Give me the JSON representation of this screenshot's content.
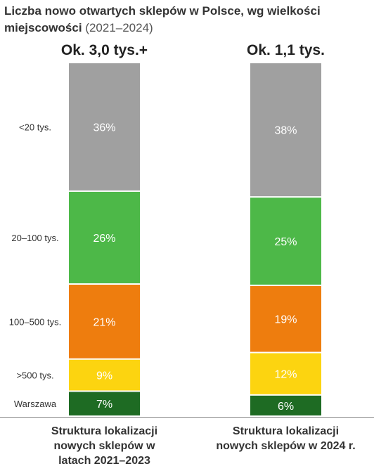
{
  "chart_data": {
    "type": "bar",
    "stacked": true,
    "percent": true,
    "title_bold": "Liczba nowo otwartych sklepów w Polsce, wg wielkości miejscowości",
    "title_normal": "(2021–2024)",
    "categories": [
      "Struktura lokalizacji nowych sklepów w latach 2021–2023",
      "Struktura lokalizacji nowych sklepów w 2024 r."
    ],
    "category_lines": [
      [
        "Struktura lokalizacji",
        "nowych sklepów w",
        "latach 2021–2023"
      ],
      [
        "Struktura lokalizacji",
        "nowych sklepów w 2024 r."
      ]
    ],
    "totals": [
      "Ok. 3,0 tys.+",
      "Ok. 1,1 tys."
    ],
    "series": [
      {
        "name": "Warszawa",
        "values": [
          7,
          6
        ],
        "labels": [
          "7%",
          "6%"
        ],
        "color": "#1e6b23",
        "label_color": "#ffffff"
      },
      {
        "name": ">500 tys.",
        "values": [
          9,
          12
        ],
        "labels": [
          "9%",
          "12%"
        ],
        "color": "#fcd410",
        "label_color": "#444444"
      },
      {
        "name": "100–500 tys.",
        "values": [
          21,
          19
        ],
        "labels": [
          "21%",
          "19%"
        ],
        "color": "#ee7d0e",
        "label_color": "#ffffff"
      },
      {
        "name": "20–100 tys.",
        "values": [
          26,
          25
        ],
        "labels": [
          "26%",
          "25%"
        ],
        "color": "#4db848",
        "label_color": "#ffffff"
      },
      {
        "name": "<20 tys.",
        "values": [
          36,
          38
        ],
        "labels": [
          "36%",
          "38%"
        ],
        "color": "#a0a0a0",
        "label_color": "#ffffff"
      }
    ],
    "ylim": [
      0,
      100
    ],
    "grid": false,
    "legend": "left"
  }
}
